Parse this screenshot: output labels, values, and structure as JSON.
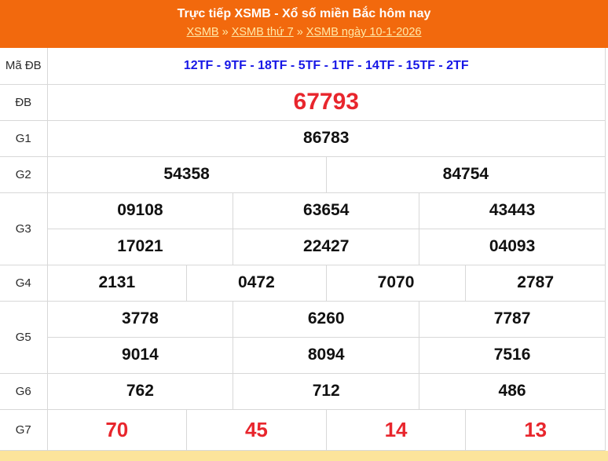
{
  "header": {
    "title": "Trực tiếp XSMB - Xổ số miền Bắc hôm nay",
    "breadcrumb": {
      "separator": "»",
      "items": [
        {
          "label": "XSMB"
        },
        {
          "label": "XSMB thứ 7"
        },
        {
          "label": "XSMB ngày 10-1-2026"
        }
      ]
    }
  },
  "colors": {
    "header_bg": "#F2690D",
    "breadcrumb_link": "#FFE9A8",
    "code_blue": "#1717E6",
    "special_red": "#E8262D",
    "number_black": "#111111",
    "border": "#D8D8D8",
    "footer_strip": "#FCE49B"
  },
  "results": {
    "ma_db": {
      "label": "Mã ĐB",
      "value": "12TF - 9TF - 18TF - 5TF - 1TF - 14TF - 15TF - 2TF"
    },
    "db": {
      "label": "ĐB",
      "value": "67793"
    },
    "g1": {
      "label": "G1",
      "values": [
        "86783"
      ]
    },
    "g2": {
      "label": "G2",
      "values": [
        "54358",
        "84754"
      ]
    },
    "g3": {
      "label": "G3",
      "rows": [
        [
          "09108",
          "63654",
          "43443"
        ],
        [
          "17021",
          "22427",
          "04093"
        ]
      ]
    },
    "g4": {
      "label": "G4",
      "values": [
        "2131",
        "0472",
        "7070",
        "2787"
      ]
    },
    "g5": {
      "label": "G5",
      "rows": [
        [
          "3778",
          "6260",
          "7787"
        ],
        [
          "9014",
          "8094",
          "7516"
        ]
      ]
    },
    "g6": {
      "label": "G6",
      "values": [
        "762",
        "712",
        "486"
      ]
    },
    "g7": {
      "label": "G7",
      "values": [
        "70",
        "45",
        "14",
        "13"
      ]
    }
  }
}
